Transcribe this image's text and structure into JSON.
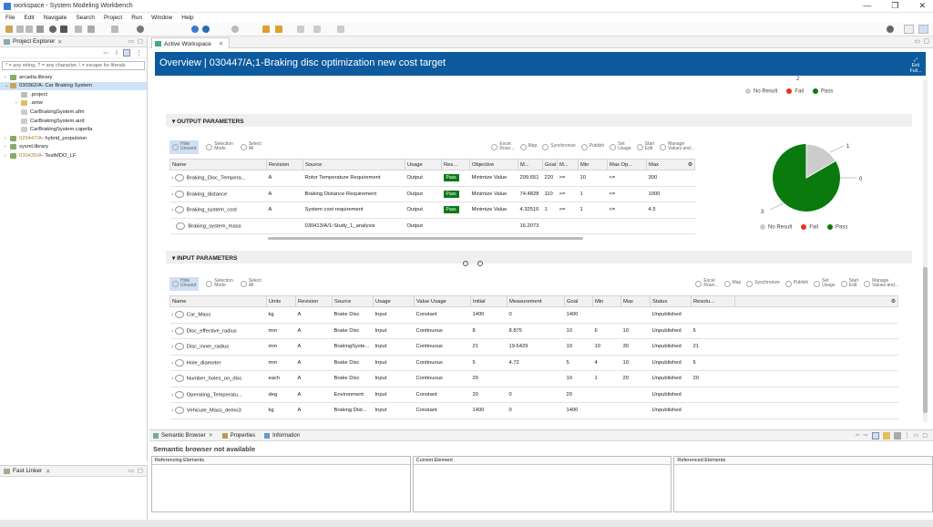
{
  "window": {
    "title": "workspace - System Modeling Workbench",
    "buttons": [
      "—",
      "❐",
      "✕"
    ]
  },
  "menu": [
    "File",
    "Edit",
    "Navigate",
    "Search",
    "Project",
    "Run",
    "Window",
    "Help"
  ],
  "left": {
    "tab": "Project Explorer",
    "filter_placeholder": "* = any string, ? = any character, \\ = escape for literals",
    "tree": [
      {
        "label": "arcadia.library",
        "suffix": "",
        "indent": 0,
        "tw": "›"
      },
      {
        "label": "030362/A",
        "suffix": " - Car Braking System",
        "indent": 0,
        "tw": "⌄",
        "selected": true
      },
      {
        "label": ".project",
        "suffix": "",
        "indent": 1,
        "tw": ""
      },
      {
        "label": ".amw",
        "suffix": "",
        "indent": 1,
        "tw": "›"
      },
      {
        "label": "CarBrakingSystem.afm",
        "suffix": "",
        "indent": 1,
        "tw": ""
      },
      {
        "label": "CarBrakingSystem.aird",
        "suffix": "",
        "indent": 1,
        "tw": ""
      },
      {
        "label": "CarBrakingSystem.capella",
        "suffix": "",
        "indent": 1,
        "tw": ""
      },
      {
        "label": "029447/A",
        "suffix": " - hybrid_propulsion",
        "indent": 0,
        "tw": "›"
      },
      {
        "label": "sysml.library",
        "suffix": "",
        "indent": 0,
        "tw": "›"
      },
      {
        "label": "030430/A",
        "suffix": " - TestMDO_LF",
        "indent": 0,
        "tw": "›"
      }
    ],
    "fast_linker": "Fast Linker"
  },
  "editor": {
    "tab": "Active Workspace",
    "header_title": "Overview | 030447/A;1-Braking disc optimization new cost target",
    "exit_label": [
      "Exit",
      "Full..."
    ]
  },
  "legend": {
    "no_result": "No Result",
    "fail": "Fail",
    "pass": "Pass",
    "top_count": "2"
  },
  "colors": {
    "no_result": "#cccccc",
    "fail": "#e8321e",
    "pass": "#0a7a0f",
    "header": "#0d5b9e"
  },
  "output": {
    "title": "OUTPUT PARAMETERS",
    "toolbar": [
      {
        "l1": "Hide",
        "l2": "Unused"
      },
      {
        "l1": "Selection",
        "l2": "Mode"
      },
      {
        "l1": "Select",
        "l2": "All"
      }
    ],
    "toolbar_right": [
      {
        "l1": "Excel",
        "l2": "Roun..."
      },
      {
        "l1": "Map",
        "l2": ""
      },
      {
        "l1": "Synchronize",
        "l2": ""
      },
      {
        "l1": "Publish",
        "l2": ""
      },
      {
        "l1": "Set",
        "l2": "Usage"
      },
      {
        "l1": "Start",
        "l2": "Edit"
      },
      {
        "l1": "Manage",
        "l2": "Values and..."
      }
    ],
    "columns": [
      "Name",
      "Revision",
      "Source",
      "Usage",
      "Res...",
      "Objective",
      "M...",
      "Goal",
      "M...",
      "Min",
      "Max Op...",
      "Max"
    ],
    "rows": [
      {
        "name": "Braking_Disc_Tempera...",
        "rev": "A",
        "source": "Rotor Temperature Requirement",
        "usage": "Output",
        "res": "Pass",
        "obj": "Minimize Value",
        "m": "299.651",
        "goal": "220",
        "mop": ">=",
        "min": "10",
        "maxop": "<=",
        "max": "300"
      },
      {
        "name": "Braking_distance",
        "rev": "A",
        "source": "Braking Distance Requirement",
        "usage": "Output",
        "res": "Pass",
        "obj": "Minimize Value",
        "m": "74.4828",
        "goal": "110",
        "mop": ">=",
        "min": "1",
        "maxop": "<=",
        "max": "1000"
      },
      {
        "name": "Braking_system_cost",
        "rev": "A",
        "source": "System cost requirement",
        "usage": "Output",
        "res": "Pass",
        "obj": "Minimize Value",
        "m": "4.32516",
        "goal": "1",
        "mop": ">=",
        "min": "1",
        "maxop": "<=",
        "max": "4.5"
      },
      {
        "name": "Braking_system_mass",
        "rev": "",
        "source": "030413/A/1-Study_1_analysis",
        "usage": "Output",
        "res": "",
        "obj": "",
        "m": "16.2073",
        "goal": "",
        "mop": "",
        "min": "",
        "maxop": "",
        "max": ""
      }
    ],
    "pie_labels": {
      "fail_count": "0",
      "pass_count": "3",
      "no_result_count": "1"
    }
  },
  "input": {
    "title": "INPUT PARAMETERS",
    "columns": [
      "Name",
      "Units",
      "Revision",
      "Source",
      "Usage",
      "Value Usage",
      "Initial",
      "Measurement",
      "Goal",
      "Min",
      "Max",
      "Status",
      "Resolu..."
    ],
    "rows": [
      {
        "name": "Car_Mass",
        "units": "kg",
        "rev": "A",
        "source": "Brake Disc",
        "usage": "Input",
        "vu": "Constant",
        "init": "1400",
        "meas": "0",
        "goal": "1400",
        "min": "",
        "max": "",
        "status": "Unpublished",
        "resol": ""
      },
      {
        "name": "Disc_effective_radius",
        "units": "mm",
        "rev": "A",
        "source": "Brake Disc",
        "usage": "Input",
        "vu": "Continuous",
        "init": "8",
        "meas": "8.875",
        "goal": "10",
        "min": "6",
        "max": "10",
        "status": "Unpublished",
        "resol": "5"
      },
      {
        "name": "Disc_inner_radius",
        "units": "mm",
        "rev": "A",
        "source": "BrakingSyste...",
        "usage": "Input",
        "vu": "Continuous",
        "init": "21",
        "meas": "19.6429",
        "goal": "10",
        "min": "10",
        "max": "30",
        "status": "Unpublished",
        "resol": "21"
      },
      {
        "name": "Hole_diameter",
        "units": "mm",
        "rev": "A",
        "source": "Brake Disc",
        "usage": "Input",
        "vu": "Continuous",
        "init": "5",
        "meas": "4.72",
        "goal": "5",
        "min": "4",
        "max": "10",
        "status": "Unpublished",
        "resol": "6"
      },
      {
        "name": "Number_holes_on_disc",
        "units": "each",
        "rev": "A",
        "source": "Brake Disc",
        "usage": "Input",
        "vu": "Continuous",
        "init": "20",
        "meas": "",
        "goal": "10",
        "min": "1",
        "max": "20",
        "status": "Unpublished",
        "resol": "20"
      },
      {
        "name": "Operating_Temperatu...",
        "units": "deg",
        "rev": "A",
        "source": "Environment",
        "usage": "Input",
        "vu": "Constant",
        "init": "20",
        "meas": "0",
        "goal": "20",
        "min": "",
        "max": "",
        "status": "Unpublished",
        "resol": ""
      },
      {
        "name": "Vehicule_Mass_demo3",
        "units": "kg",
        "rev": "A",
        "source": "Braking Dist...",
        "usage": "Input",
        "vu": "Constant",
        "init": "1400",
        "meas": "0",
        "goal": "1400",
        "min": "",
        "max": "",
        "status": "Unpublished",
        "resol": ""
      }
    ]
  },
  "bottom": {
    "tabs": [
      "Semantic Browser",
      "Properties",
      "Information"
    ],
    "message": "Semantic browser not available",
    "panes": [
      "Referencing Elements",
      "Current Element",
      "Referenced Elements"
    ]
  }
}
